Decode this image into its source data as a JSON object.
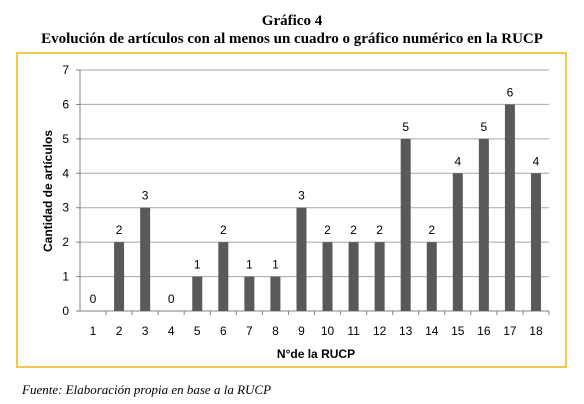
{
  "header": {
    "figure_label": "Gráfico 4",
    "title": "Evolución de artículos con al menos un cuadro o gráfico numérico en la RUCP"
  },
  "source_note": "Fuente: Elaboración propia en base a la RUCP",
  "colors": {
    "bar": "#595959",
    "frame": "#f2c94c",
    "grid": "#a6a6a6",
    "axis": "#808080"
  },
  "chart_data": {
    "type": "bar",
    "categories": [
      "1",
      "2",
      "3",
      "4",
      "5",
      "6",
      "7",
      "8",
      "9",
      "10",
      "11",
      "12",
      "13",
      "14",
      "15",
      "16",
      "17",
      "18"
    ],
    "values": [
      0,
      2,
      3,
      0,
      1,
      2,
      1,
      1,
      3,
      2,
      2,
      2,
      5,
      2,
      4,
      5,
      6,
      4
    ],
    "data_labels": [
      "0",
      "2",
      "3",
      "0",
      "1",
      "2",
      "1",
      "1",
      "3",
      "2",
      "2",
      "2",
      "5",
      "2",
      "4",
      "5",
      "6",
      "4"
    ],
    "xlabel": "N°de la RUCP",
    "ylabel": "Cantidad de artículos",
    "ylim": [
      0,
      7
    ],
    "yticks": [
      "0",
      "1",
      "2",
      "3",
      "4",
      "5",
      "6",
      "7"
    ],
    "grid": true,
    "legend": "none"
  }
}
